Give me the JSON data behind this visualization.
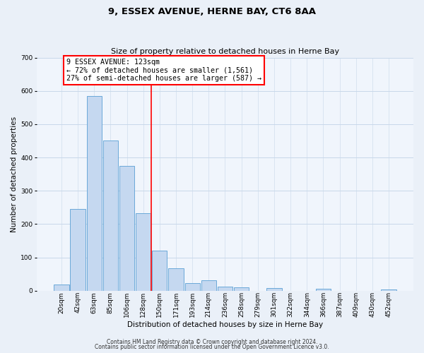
{
  "title": "9, ESSEX AVENUE, HERNE BAY, CT6 8AA",
  "subtitle": "Size of property relative to detached houses in Herne Bay",
  "xlabel": "Distribution of detached houses by size in Herne Bay",
  "ylabel": "Number of detached properties",
  "bar_labels": [
    "20sqm",
    "42sqm",
    "63sqm",
    "85sqm",
    "106sqm",
    "128sqm",
    "150sqm",
    "171sqm",
    "193sqm",
    "214sqm",
    "236sqm",
    "258sqm",
    "279sqm",
    "301sqm",
    "322sqm",
    "344sqm",
    "366sqm",
    "387sqm",
    "409sqm",
    "430sqm",
    "452sqm"
  ],
  "bar_values": [
    18,
    245,
    585,
    450,
    375,
    233,
    120,
    68,
    22,
    31,
    13,
    10,
    0,
    8,
    0,
    0,
    5,
    0,
    0,
    0,
    4
  ],
  "bar_color": "#c5d8f0",
  "bar_edge_color": "#5a9fd4",
  "vline_x": 5.5,
  "vline_color": "red",
  "annotation_title": "9 ESSEX AVENUE: 123sqm",
  "annotation_line1": "← 72% of detached houses are smaller (1,561)",
  "annotation_line2": "27% of semi-detached houses are larger (587) →",
  "annotation_box_color": "white",
  "annotation_box_edge_color": "red",
  "ylim": [
    0,
    700
  ],
  "yticks": [
    0,
    100,
    200,
    300,
    400,
    500,
    600,
    700
  ],
  "footer1": "Contains HM Land Registry data © Crown copyright and database right 2024.",
  "footer2": "Contains public sector information licensed under the Open Government Licence v3.0.",
  "bg_color": "#eaf0f8",
  "plot_bg_color": "#f0f5fc",
  "grid_color": "#c8d8ea",
  "title_fontsize": 9.5,
  "subtitle_fontsize": 8,
  "axis_label_fontsize": 7.5,
  "tick_fontsize": 6.5,
  "annot_fontsize": 7.2,
  "footer_fontsize": 5.5
}
